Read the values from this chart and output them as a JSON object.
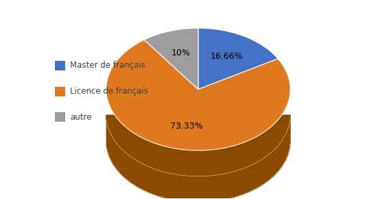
{
  "labels": [
    "Master de français",
    "Licence de français",
    "autre"
  ],
  "values": [
    16.66,
    73.33,
    10.0
  ],
  "colors": [
    "#4472C4",
    "#E07820",
    "#9E9E9E"
  ],
  "dark_colors": [
    "#2A4A8A",
    "#8B4A00",
    "#707070"
  ],
  "autopct_labels": [
    "16.66%",
    "73.33%",
    "10%"
  ],
  "legend_labels": [
    "Master de français",
    "Licence de français",
    "autre"
  ],
  "startangle": 90,
  "background_color": "#ffffff"
}
